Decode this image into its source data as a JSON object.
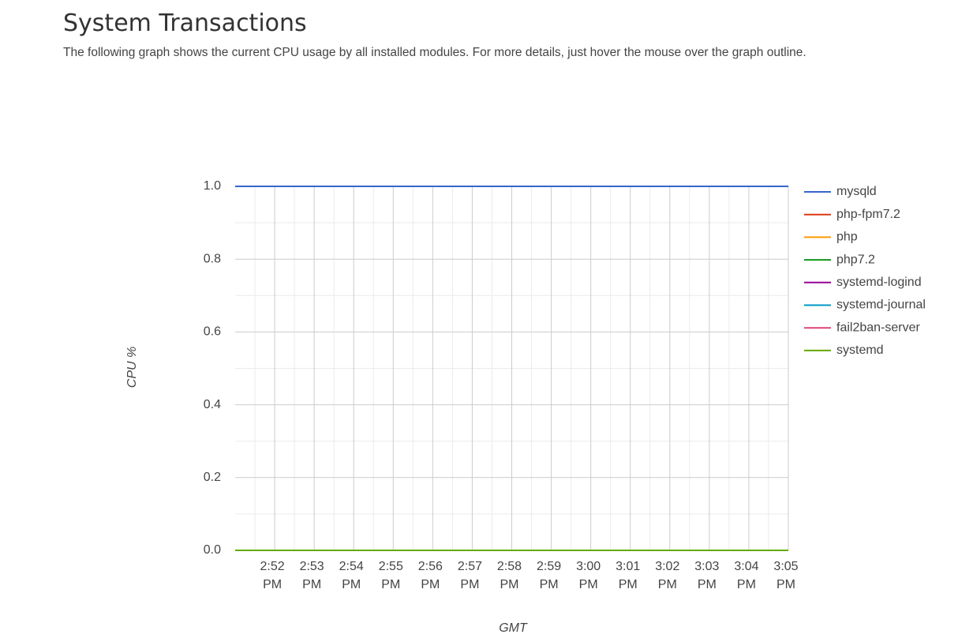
{
  "header": {
    "title": "System Transactions",
    "description": "The following graph shows the current CPU usage by all installed modules. For more details, just hover the mouse over the graph outline."
  },
  "chart_data": {
    "type": "line",
    "y_label": "CPU %",
    "x_label": "GMT",
    "x": [
      null,
      "2:52 PM",
      "2:53 PM",
      "2:54 PM",
      "2:55 PM",
      "2:56 PM",
      "2:57 PM",
      "2:58 PM",
      "2:59 PM",
      "3:00 PM",
      "3:01 PM",
      "3:02 PM",
      "3:03 PM",
      "3:04 PM",
      "3:05 PM"
    ],
    "ylim": [
      0,
      1
    ],
    "yticks": [
      {
        "value": 0,
        "label": "0.0"
      },
      0.2,
      0.4,
      0.6,
      0.8,
      {
        "value": 1,
        "label": "1.0"
      }
    ],
    "grid": true,
    "legend": "right",
    "series": [
      {
        "name": "mysqld",
        "color": "#3366cc",
        "values": [
          1,
          1,
          1,
          1,
          1,
          1,
          1,
          1,
          1,
          1,
          1,
          1,
          1,
          1,
          1
        ]
      },
      {
        "name": "php-fpm7.2",
        "color": "#dc3912",
        "values": [
          0,
          0,
          0,
          0,
          0,
          0,
          0,
          0,
          0,
          0,
          0,
          0,
          0,
          0,
          0
        ]
      },
      {
        "name": "php",
        "color": "#ff9900",
        "values": [
          0,
          0,
          0,
          0,
          0,
          0,
          0,
          0,
          0,
          0,
          0,
          0,
          0,
          0,
          0
        ]
      },
      {
        "name": "php7.2",
        "color": "#109618",
        "values": [
          0,
          0,
          0,
          0,
          0,
          0,
          0,
          0,
          0,
          0,
          0,
          0,
          0,
          0,
          0
        ]
      },
      {
        "name": "systemd-logind",
        "color": "#990099",
        "values": [
          0,
          0,
          0,
          0,
          0,
          0,
          0,
          0,
          0,
          0,
          0,
          0,
          0,
          0,
          0
        ]
      },
      {
        "name": "systemd-journal",
        "color": "#0099c6",
        "values": [
          0,
          0,
          0,
          0,
          0,
          0,
          0,
          0,
          0,
          0,
          0,
          0,
          0,
          0,
          0
        ]
      },
      {
        "name": "fail2ban-server",
        "color": "#dd4477",
        "values": [
          0,
          0,
          0,
          0,
          0,
          0,
          0,
          0,
          0,
          0,
          0,
          0,
          0,
          0,
          0
        ]
      },
      {
        "name": "systemd",
        "color": "#66aa00",
        "values": [
          0,
          0,
          0,
          0,
          0,
          0,
          0,
          0,
          0,
          0,
          0,
          0,
          0,
          0,
          0
        ]
      }
    ]
  }
}
